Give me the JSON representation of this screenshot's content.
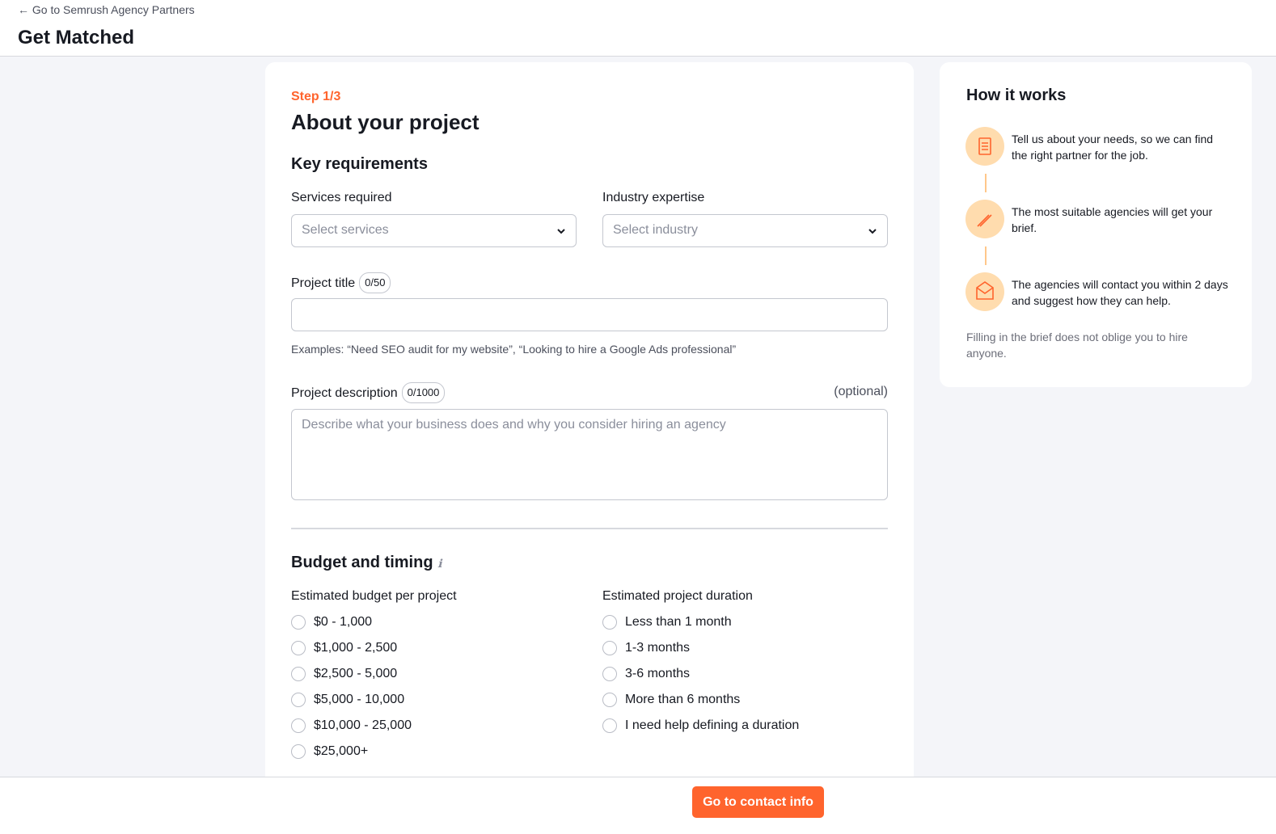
{
  "header": {
    "back_link": "Go to Semrush Agency Partners",
    "title": "Get Matched"
  },
  "form": {
    "step": "Step 1/3",
    "title": "About your project",
    "key_requirements": {
      "heading": "Key requirements",
      "services": {
        "label": "Services required",
        "placeholder": "Select services"
      },
      "industry": {
        "label": "Industry expertise",
        "placeholder": "Select industry"
      },
      "project_title": {
        "label": "Project title",
        "counter": "0/50",
        "hint": "Examples: “Need SEO audit for my website”, “Looking to hire a Google Ads professional”"
      },
      "project_description": {
        "label": "Project description",
        "counter": "0/1000",
        "optional": "(optional)",
        "placeholder": "Describe what your business does and why you consider hiring an agency"
      }
    },
    "budget_timing": {
      "heading": "Budget and timing",
      "budget": {
        "label": "Estimated budget per project",
        "options": [
          "$0 - 1,000",
          "$1,000 - 2,500",
          "$2,500 - 5,000",
          "$5,000 - 10,000",
          "$10,000 - 25,000",
          "$25,000+"
        ]
      },
      "duration": {
        "label": "Estimated project duration",
        "options": [
          "Less than 1 month",
          "1-3 months",
          "3-6 months",
          "More than 6 months",
          "I need help defining a duration"
        ]
      }
    },
    "submit": "Go to contact info"
  },
  "how_it_works": {
    "title": "How it works",
    "steps": [
      "Tell us about your needs, so we can find the right partner for the job.",
      "The most suitable agencies will get your brief.",
      "The agencies will contact you within 2 days and suggest how they can help."
    ],
    "note": "Filling in the brief does not oblige you to hire anyone."
  }
}
